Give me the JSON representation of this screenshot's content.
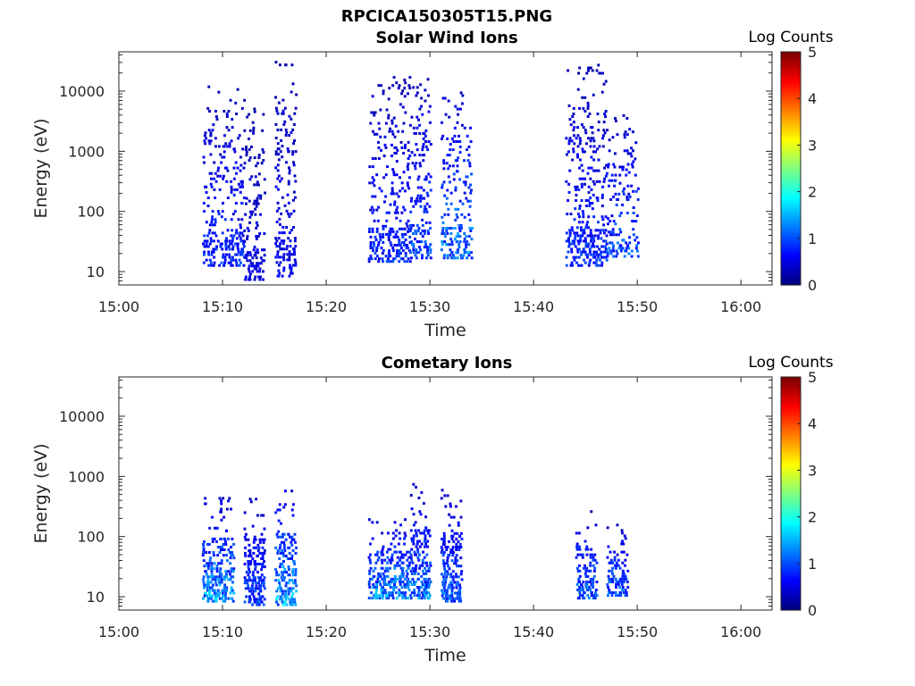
{
  "figure": {
    "title": "RPCICA150305T15.PNG"
  },
  "colormap": [
    "#00007f",
    "#0000ff",
    "#007fff",
    "#00ffff",
    "#7fff7f",
    "#ffff00",
    "#ff7f00",
    "#ff0000",
    "#7f0000"
  ],
  "chart_data": [
    {
      "type": "heatmap",
      "title": "Solar Wind Ions",
      "xlabel": "Time",
      "ylabel": "Energy (eV)",
      "x_range": [
        "15:00",
        "16:03"
      ],
      "x_ticks": [
        "15:00",
        "15:10",
        "15:20",
        "15:30",
        "15:40",
        "15:50",
        "16:00"
      ],
      "y_scale": "log",
      "y_range": [
        6,
        45000
      ],
      "y_ticks": [
        "10",
        "100",
        "1000",
        "10000"
      ],
      "colorbar": {
        "label": "Log Counts",
        "range": [
          0,
          5
        ],
        "ticks": [
          "0",
          "1",
          "2",
          "3",
          "4",
          "5"
        ]
      },
      "clusters": [
        {
          "t_start": "15:08",
          "t_end": "15:12",
          "e_min": 12,
          "e_max": 12000,
          "log_counts_max": 1.0
        },
        {
          "t_start": "15:12",
          "t_end": "15:14",
          "e_min": 7,
          "e_max": 6000,
          "log_counts_max": 0.6
        },
        {
          "t_start": "15:15",
          "t_end": "15:17",
          "e_min": 8,
          "e_max": 35000,
          "log_counts_max": 0.7
        },
        {
          "t_start": "15:24",
          "t_end": "15:28",
          "e_min": 14,
          "e_max": 18000,
          "log_counts_max": 1.0
        },
        {
          "t_start": "15:28",
          "t_end": "15:30",
          "e_min": 16,
          "e_max": 17000,
          "log_counts_max": 1.2
        },
        {
          "t_start": "15:31",
          "t_end": "15:34",
          "e_min": 16,
          "e_max": 9000,
          "log_counts_max": 1.6
        },
        {
          "t_start": "15:43",
          "t_end": "15:47",
          "e_min": 12,
          "e_max": 28000,
          "log_counts_max": 1.0
        },
        {
          "t_start": "15:47",
          "t_end": "15:50",
          "e_min": 17,
          "e_max": 4000,
          "log_counts_max": 1.3
        }
      ]
    },
    {
      "type": "heatmap",
      "title": "Cometary Ions",
      "xlabel": "Time",
      "ylabel": "Energy (eV)",
      "x_range": [
        "15:00",
        "16:03"
      ],
      "x_ticks": [
        "15:00",
        "15:10",
        "15:20",
        "15:30",
        "15:40",
        "15:50",
        "16:00"
      ],
      "y_scale": "log",
      "y_range": [
        6,
        45000
      ],
      "y_ticks": [
        "10",
        "100",
        "1000",
        "10000"
      ],
      "colorbar": {
        "label": "Log Counts",
        "range": [
          0,
          5
        ],
        "ticks": [
          "0",
          "1",
          "2",
          "3",
          "4",
          "5"
        ]
      },
      "clusters": [
        {
          "t_start": "15:08",
          "t_end": "15:11",
          "e_min": 8,
          "e_max": 450,
          "log_counts_max": 1.8
        },
        {
          "t_start": "15:12",
          "t_end": "15:14",
          "e_min": 7,
          "e_max": 500,
          "log_counts_max": 1.2
        },
        {
          "t_start": "15:15",
          "t_end": "15:17",
          "e_min": 7,
          "e_max": 700,
          "log_counts_max": 1.9
        },
        {
          "t_start": "15:24",
          "t_end": "15:28",
          "e_min": 9,
          "e_max": 200,
          "log_counts_max": 1.7
        },
        {
          "t_start": "15:28",
          "t_end": "15:30",
          "e_min": 9,
          "e_max": 700,
          "log_counts_max": 1.5
        },
        {
          "t_start": "15:31",
          "t_end": "15:33",
          "e_min": 8,
          "e_max": 600,
          "log_counts_max": 1.4
        },
        {
          "t_start": "15:44",
          "t_end": "15:46",
          "e_min": 9,
          "e_max": 250,
          "log_counts_max": 1.4
        },
        {
          "t_start": "15:47",
          "t_end": "15:49",
          "e_min": 10,
          "e_max": 160,
          "log_counts_max": 1.3
        }
      ]
    }
  ]
}
